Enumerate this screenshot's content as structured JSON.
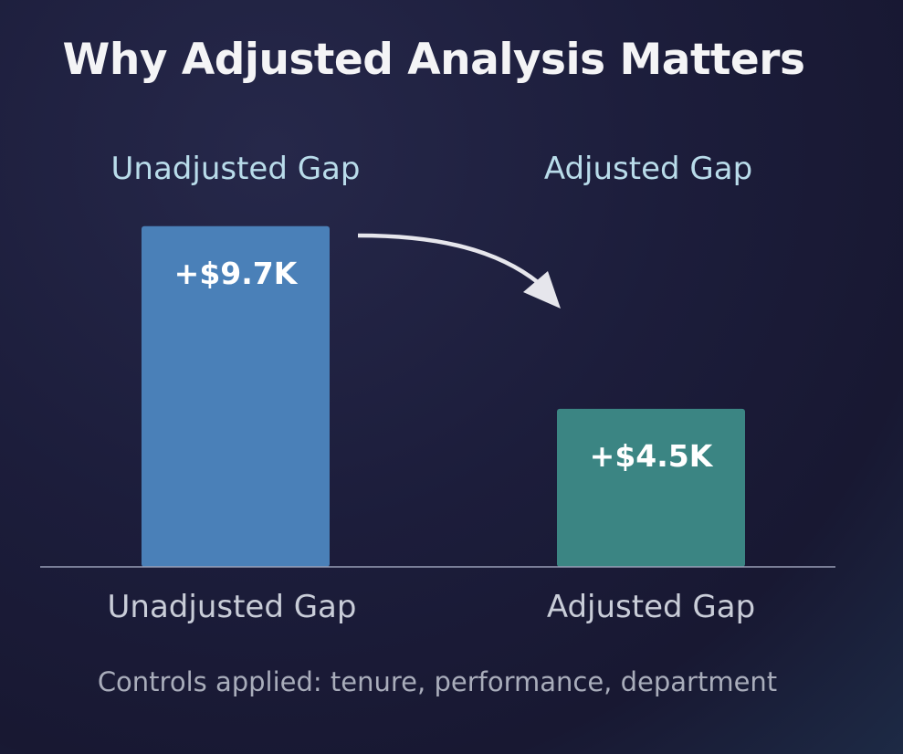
{
  "title": "Why Adjusted Analysis Matters",
  "footnote": "Controls applied: tenure, performance, department",
  "colors": {
    "unadjusted_bar": "#4a80b8",
    "adjusted_bar": "#3b8583",
    "background": "#1c1c38",
    "axis": "#9aa0b8",
    "arrow": "#e6e6ec"
  },
  "chart_data": {
    "type": "bar",
    "title": "Why Adjusted Analysis Matters",
    "categories": [
      "Unadjusted Gap",
      "Adjusted Gap"
    ],
    "series_headers": [
      "Unadjusted Gap",
      "Adjusted Gap"
    ],
    "values": [
      9.7,
      4.5
    ],
    "data_labels": [
      "+$9.7K",
      "+$4.5K"
    ],
    "unit": "K",
    "xlabel": "",
    "ylabel": "",
    "ylim": [
      0,
      11.2
    ],
    "grid": false,
    "legend": "none",
    "annotation": "arrow-from-unadjusted-to-adjusted"
  }
}
